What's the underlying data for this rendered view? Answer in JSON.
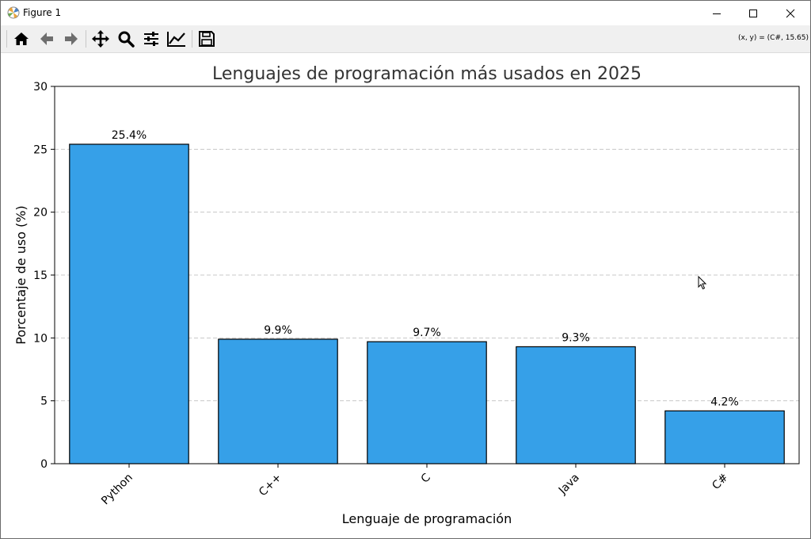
{
  "window": {
    "title": "Figure 1",
    "controls": [
      "minimize",
      "maximize",
      "close"
    ]
  },
  "toolbar": {
    "buttons": [
      {
        "name": "home",
        "icon": "home-icon"
      },
      {
        "name": "back",
        "icon": "arrow-left-icon"
      },
      {
        "name": "forward",
        "icon": "arrow-right-icon"
      },
      {
        "name": "pan",
        "icon": "move-icon"
      },
      {
        "name": "zoom",
        "icon": "magnifier-icon"
      },
      {
        "name": "configure-subplots",
        "icon": "sliders-icon"
      },
      {
        "name": "edit-axis",
        "icon": "line-chart-icon"
      },
      {
        "name": "save",
        "icon": "floppy-disk-icon"
      }
    ],
    "coords_readout": "(x, y) = (C#, 15.65)"
  },
  "chart_data": {
    "type": "bar",
    "title": "Lenguajes de programación más usados en 2025",
    "xlabel": "Lenguaje de programación",
    "ylabel": "Porcentaje de uso (%)",
    "categories": [
      "Python",
      "C++",
      "C",
      "Java",
      "C#"
    ],
    "values": [
      25.4,
      9.9,
      9.7,
      9.3,
      4.2
    ],
    "data_labels": [
      "25.4%",
      "9.9%",
      "9.7%",
      "9.3%",
      "4.2%"
    ],
    "ylim": [
      0,
      30
    ],
    "yticks": [
      0,
      5,
      10,
      15,
      20,
      25,
      30
    ],
    "grid": "y-dashed",
    "bar_color": "#36a0e8",
    "bar_edge_color": "#000000"
  }
}
